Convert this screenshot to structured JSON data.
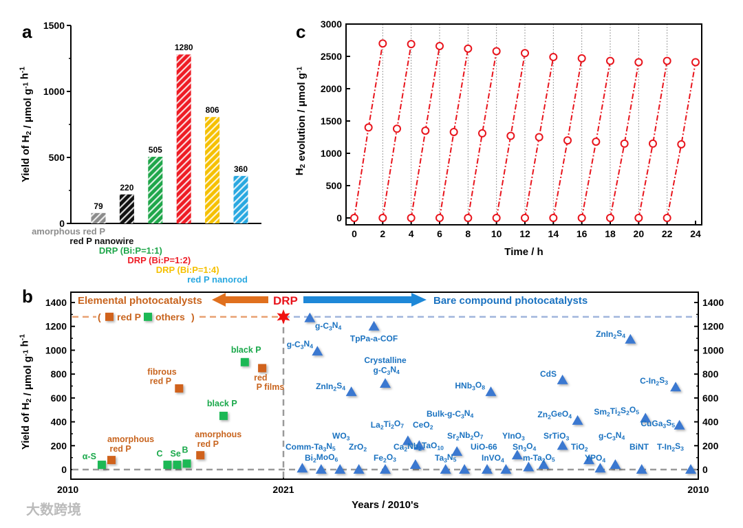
{
  "panels": {
    "a": "a",
    "b": "b",
    "c": "c"
  },
  "watermark": "大数跨境",
  "chart_data": [
    {
      "id": "a",
      "type": "bar",
      "ylabel": "Yield of H2 / μmol g-1 h-1",
      "ylim": [
        0,
        1500
      ],
      "yticks": [
        0,
        500,
        1000,
        1500
      ],
      "categories": [
        "amorphous red P",
        "red P nanowire",
        "DRP (Bi:P=1:1)",
        "DRP (Bi:P=1:2)",
        "DRP (Bi:P=1:4)",
        "red P nanorod"
      ],
      "values": [
        79,
        220,
        505,
        1280,
        806,
        360
      ],
      "colors": [
        "#8c8c8c",
        "#111111",
        "#1fa64a",
        "#ee1c25",
        "#f5c000",
        "#29a8e0"
      ]
    },
    {
      "id": "c",
      "type": "line",
      "xlabel": "Time / h",
      "ylabel": "H2 evolution / μmol g-1",
      "xlim": [
        0,
        24
      ],
      "ylim": [
        0,
        3000
      ],
      "xticks": [
        0,
        2,
        4,
        6,
        8,
        10,
        12,
        14,
        16,
        18,
        20,
        22,
        24
      ],
      "yticks": [
        0,
        500,
        1000,
        1500,
        2000,
        2500,
        3000
      ],
      "color": "#e8141c",
      "cycles": [
        [
          0,
          1400,
          2700
        ],
        [
          0,
          1380,
          2690
        ],
        [
          0,
          1350,
          2660
        ],
        [
          0,
          1330,
          2620
        ],
        [
          0,
          1310,
          2580
        ],
        [
          0,
          1270,
          2550
        ],
        [
          0,
          1250,
          2490
        ],
        [
          0,
          1200,
          2470
        ],
        [
          0,
          1180,
          2430
        ],
        [
          0,
          1150,
          2410
        ],
        [
          0,
          1150,
          2430
        ],
        [
          0,
          1140,
          2410
        ]
      ]
    },
    {
      "id": "b",
      "type": "scatter",
      "xlabel": "Years / 2010's",
      "ylabel": "Yield of H2 / μmol g-1 h-1",
      "ylim": [
        0,
        1400
      ],
      "yticks": [
        0,
        200,
        400,
        600,
        800,
        1000,
        1200,
        1400
      ],
      "xticklabels": [
        "2010",
        "2021",
        "2010"
      ],
      "header": {
        "left": "Elemental photocatalysts",
        "center": "DRP",
        "right": "Bare compound photocatalysts"
      },
      "legend": {
        "open": "(",
        "red": "red P",
        "others": "others",
        "close": ")"
      },
      "reference": {
        "label": "DRP",
        "year": 2021,
        "value": 1280
      },
      "elemental": [
        {
          "label": "α-S",
          "kind": "others",
          "year": 2011.6,
          "value": 40
        },
        {
          "label": "amorphous red P",
          "kind": "red",
          "year": 2012.1,
          "value": 80
        },
        {
          "label": "C",
          "kind": "others",
          "year": 2015.0,
          "value": 40
        },
        {
          "label": "Se",
          "kind": "others",
          "year": 2015.5,
          "value": 40
        },
        {
          "label": "B",
          "kind": "others",
          "year": 2016.0,
          "value": 50
        },
        {
          "label": "amorphous red P",
          "kind": "red",
          "year": 2016.7,
          "value": 120
        },
        {
          "label": "fibrous red P",
          "kind": "red",
          "year": 2015.6,
          "value": 680
        },
        {
          "label": "black P",
          "kind": "others",
          "year": 2017.9,
          "value": 450
        },
        {
          "label": "black P",
          "kind": "others",
          "year": 2019.0,
          "value": 900
        },
        {
          "label": "red P films",
          "kind": "red",
          "year": 2019.9,
          "value": 850
        }
      ],
      "compounds": [
        {
          "label": "g-C3N4",
          "year": 2020.3,
          "value": 1270
        },
        {
          "label": "TpPa-a-COF",
          "year": 2018.6,
          "value": 1200
        },
        {
          "label": "g-C3N4",
          "year": 2020.1,
          "value": 990
        },
        {
          "label": "Crystalline g-C3N4",
          "year": 2018.3,
          "value": 720
        },
        {
          "label": "ZnIn2S4",
          "year": 2019.2,
          "value": 650
        },
        {
          "label": "HNb3O8",
          "year": 2015.5,
          "value": 650
        },
        {
          "label": "CdS",
          "year": 2013.6,
          "value": 750
        },
        {
          "label": "ZnIn2S4",
          "year": 2011.8,
          "value": 1090
        },
        {
          "label": "C-In2S3",
          "year": 2010.6,
          "value": 690
        },
        {
          "label": "Zn2GeO4",
          "year": 2013.2,
          "value": 410
        },
        {
          "label": "Sm2Ti2S2O5",
          "year": 2011.4,
          "value": 430
        },
        {
          "label": "CuGa3S5",
          "year": 2010.5,
          "value": 370
        },
        {
          "label": "La2Ti2O7",
          "year": 2017.7,
          "value": 240
        },
        {
          "label": "CeO2",
          "year": 2017.4,
          "value": 200
        },
        {
          "label": "Bulk-g-C3N4",
          "year": 2016.4,
          "value": 150
        },
        {
          "label": "Ca2Nb2TaO10",
          "year": 2017.5,
          "value": 40
        },
        {
          "label": "Ta3N5",
          "year": 2016.7,
          "value": 0
        },
        {
          "label": "Sr2Nb2O7",
          "year": 2016.2,
          "value": 0
        },
        {
          "label": "UiO-66",
          "year": 2015.6,
          "value": 0
        },
        {
          "label": "InVO4",
          "year": 2015.1,
          "value": 0
        },
        {
          "label": "YInO3",
          "year": 2014.8,
          "value": 120
        },
        {
          "label": "Sn3O4",
          "year": 2014.5,
          "value": 20
        },
        {
          "label": "m-Ta2O5",
          "year": 2014.1,
          "value": 40
        },
        {
          "label": "SrTiO3",
          "year": 2013.6,
          "value": 200
        },
        {
          "label": "TiO2",
          "year": 2012.9,
          "value": 80
        },
        {
          "label": "YPO4",
          "year": 2012.6,
          "value": 10
        },
        {
          "label": "g-C3N4",
          "year": 2012.2,
          "value": 40
        },
        {
          "label": "BiNT",
          "year": 2011.5,
          "value": 0
        },
        {
          "label": "T-In2S3",
          "year": 2010.2,
          "value": 0
        },
        {
          "label": "Comm-Ta3N5",
          "year": 2020.5,
          "value": 10
        },
        {
          "label": "Bi2MoO6",
          "year": 2020.0,
          "value": 0
        },
        {
          "label": "WO3",
          "year": 2019.5,
          "value": 0
        },
        {
          "label": "ZrO2",
          "year": 2019.0,
          "value": 0
        },
        {
          "label": "Fe2O3",
          "year": 2018.3,
          "value": 0
        }
      ]
    }
  ]
}
